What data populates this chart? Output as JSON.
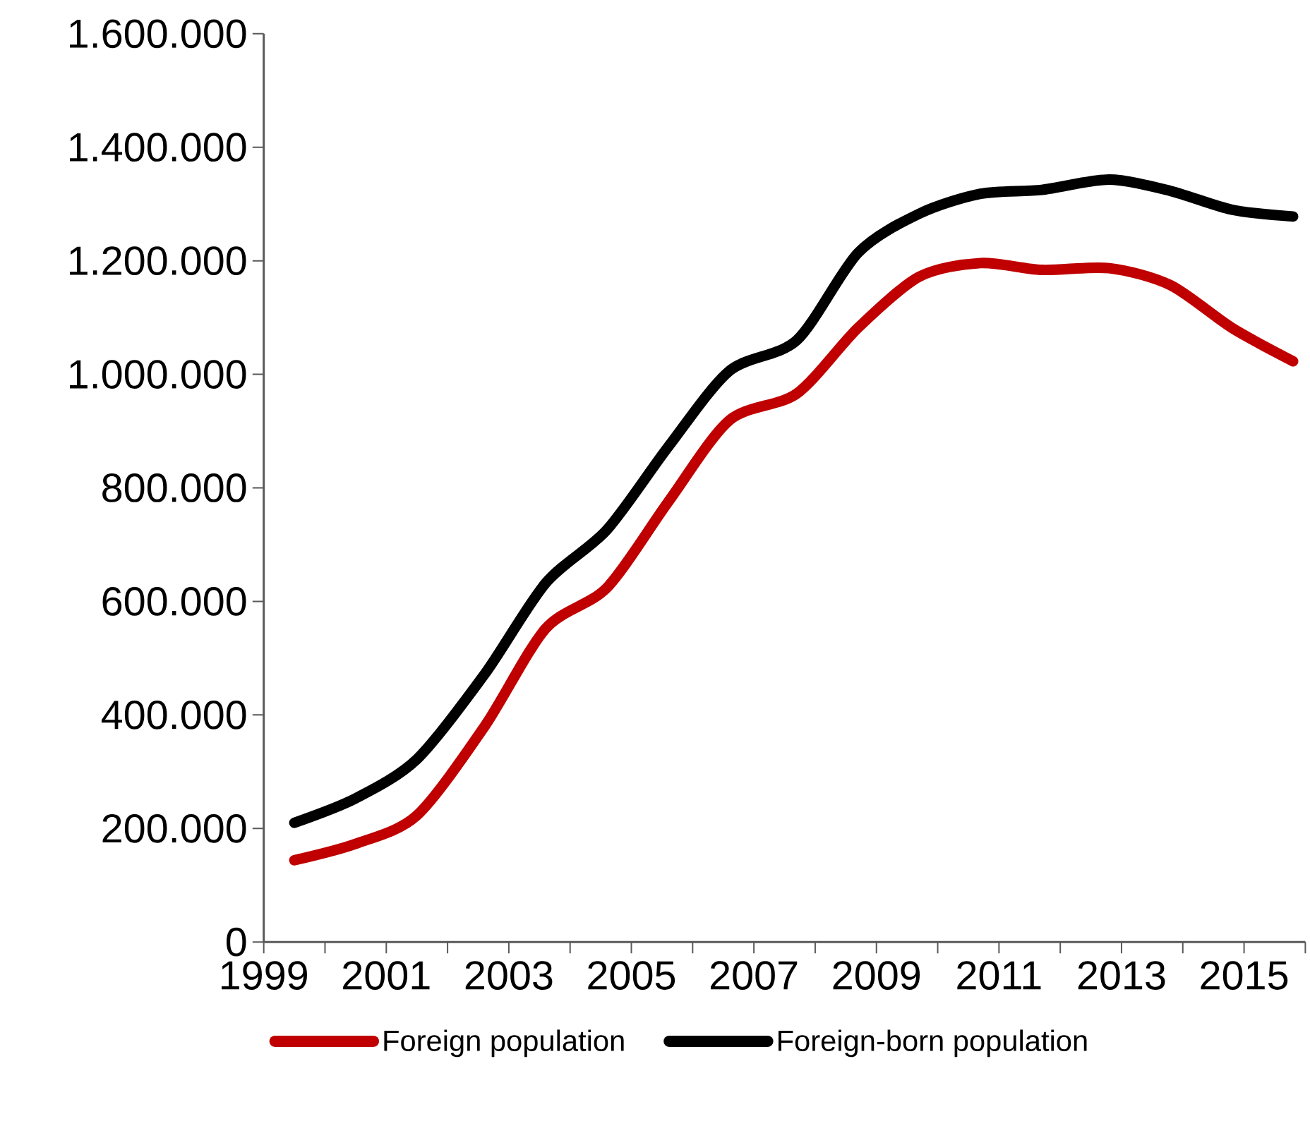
{
  "chart_data": {
    "type": "line",
    "x": [
      1999.5,
      2000.5,
      2001.5,
      2002.6,
      2003.6,
      2004.6,
      2005.6,
      2006.6,
      2007.7,
      2008.7,
      2009.7,
      2010.7,
      2011.7,
      2012.8,
      2013.8,
      2014.8,
      2015.8
    ],
    "series": [
      {
        "name": "Foreign population",
        "color": "#c00000",
        "values": [
          144000,
          173000,
          223000,
          379000,
          552000,
          624000,
          775000,
          919000,
          966000,
          1082000,
          1172000,
          1196000,
          1184000,
          1187000,
          1157000,
          1082000,
          1023000
        ]
      },
      {
        "name": "Foreign-born population",
        "color": "#000000",
        "values": [
          210000,
          253000,
          322000,
          471000,
          632000,
          726000,
          872000,
          1006000,
          1060000,
          1214000,
          1283000,
          1318000,
          1325000,
          1343000,
          1323000,
          1290000,
          1278000
        ]
      }
    ],
    "xlim": [
      1999,
      2016
    ],
    "xticks": [
      1999,
      {
        "value": 2000,
        "label": null
      },
      2001,
      {
        "value": 2002,
        "label": null
      },
      2003,
      {
        "value": 2004,
        "label": null
      },
      2005,
      {
        "value": 2006,
        "label": null
      },
      2007,
      {
        "value": 2008,
        "label": null
      },
      2009,
      {
        "value": 2010,
        "label": null
      },
      2011,
      {
        "value": 2012,
        "label": null
      },
      2013,
      {
        "value": 2014,
        "label": null
      },
      2015,
      {
        "value": 2016,
        "label": null
      }
    ],
    "ylim": [
      0,
      1600000
    ],
    "yticks": [
      0,
      {
        "value": 200000,
        "label": "200.000"
      },
      {
        "value": 400000,
        "label": "400.000"
      },
      {
        "value": 600000,
        "label": "600.000"
      },
      {
        "value": 800000,
        "label": "800.000"
      },
      {
        "value": 1000000,
        "label": "1.000.000"
      },
      {
        "value": 1200000,
        "label": "1.200.000"
      },
      {
        "value": 1400000,
        "label": "1.400.000"
      },
      {
        "value": 1600000,
        "label": "1.600.000"
      }
    ],
    "grid": false,
    "legend": "bottom",
    "marker": "none",
    "line_style": "solid"
  }
}
